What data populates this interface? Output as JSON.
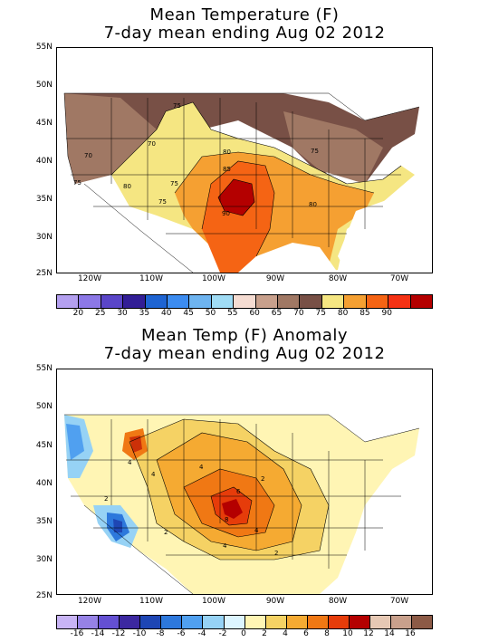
{
  "panels": [
    {
      "title_line1": "Mean Temperature (F)",
      "title_line2": "7-day mean ending Aug 02 2012",
      "lat_labels": [
        "55N",
        "50N",
        "45N",
        "40N",
        "35N",
        "30N",
        "25N"
      ],
      "lon_labels": [
        "120W",
        "110W",
        "100W",
        "90W",
        "80W",
        "70W"
      ],
      "contour_labels": [
        "75",
        "70",
        "70",
        "75",
        "80",
        "80",
        "85",
        "75",
        "75",
        "75",
        "80",
        "90",
        "90",
        "75",
        "80"
      ],
      "colorbar_labels": [
        "20",
        "25",
        "30",
        "35",
        "40",
        "45",
        "50",
        "55",
        "60",
        "65",
        "70",
        "75",
        "80",
        "85",
        "90"
      ],
      "colorbar_colors": [
        "#b4a0f0",
        "#8c78e6",
        "#5a46c8",
        "#321e96",
        "#1e64d2",
        "#3c8cf0",
        "#6eb4f0",
        "#a0dcf5",
        "#f5dcd2",
        "#c8a08c",
        "#a07864",
        "#785046",
        "#f5e682",
        "#f5a032",
        "#f56414",
        "#f53214",
        "#b40000"
      ]
    },
    {
      "title_line1": "Mean Temp (F) Anomaly",
      "title_line2": "7-day mean ending Aug 02 2012",
      "lat_labels": [
        "55N",
        "50N",
        "45N",
        "40N",
        "35N",
        "30N",
        "25N"
      ],
      "lon_labels": [
        "120W",
        "110W",
        "100W",
        "90W",
        "80W",
        "70W"
      ],
      "contour_labels": [
        "4",
        "4",
        "4",
        "4",
        "2",
        "2",
        "6",
        "8",
        "4",
        "2",
        "2",
        "2",
        "2",
        "2",
        "2"
      ],
      "colorbar_labels": [
        "-16",
        "-14",
        "-12",
        "-10",
        "-8",
        "-6",
        "-4",
        "-2",
        "0",
        "2",
        "4",
        "6",
        "8",
        "10",
        "12",
        "14",
        "16"
      ],
      "colorbar_colors": [
        "#c8b4f5",
        "#9682e6",
        "#6450d2",
        "#3c28a0",
        "#1e46b4",
        "#2d78dc",
        "#50a0f0",
        "#96d2f5",
        "#dcf5ff",
        "#fff5b4",
        "#f5d264",
        "#f5aa32",
        "#f07814",
        "#e63c0a",
        "#b40000",
        "#e6c8b4",
        "#c8a08c",
        "#8c5a46"
      ]
    }
  ]
}
